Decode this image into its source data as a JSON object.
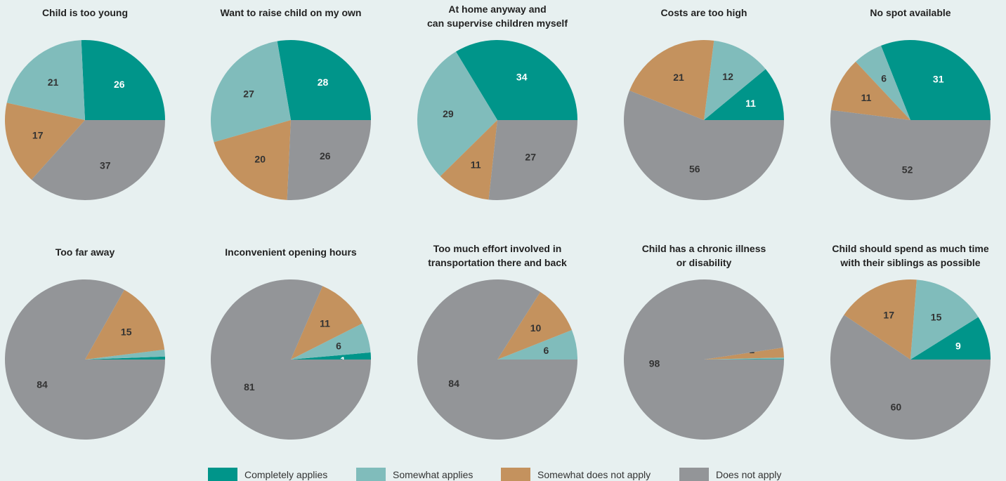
{
  "legend": [
    {
      "key": "completely",
      "label": "Completely applies",
      "color": "#00958a"
    },
    {
      "key": "somewhat",
      "label": "Somewhat applies",
      "color": "#80bcbb"
    },
    {
      "key": "somewhat_not",
      "label": "Somewhat does not apply",
      "color": "#c4925e"
    },
    {
      "key": "not",
      "label": "Does not apply",
      "color": "#939598"
    }
  ],
  "chart_data": [
    {
      "type": "pie",
      "title": [
        "Child is too young"
      ],
      "slices": [
        {
          "series": "Completely applies",
          "value": 26,
          "label": "26"
        },
        {
          "series": "Somewhat applies",
          "value": 21,
          "label": "21"
        },
        {
          "series": "Somewhat does not apply",
          "value": 17,
          "label": "17"
        },
        {
          "series": "Does not apply",
          "value": 37,
          "label": "37"
        }
      ]
    },
    {
      "type": "pie",
      "title": [
        "Want to raise child on my own"
      ],
      "slices": [
        {
          "series": "Completely applies",
          "value": 28,
          "label": "28"
        },
        {
          "series": "Somewhat applies",
          "value": 27,
          "label": "27"
        },
        {
          "series": "Somewhat does not apply",
          "value": 20,
          "label": "20"
        },
        {
          "series": "Does not apply",
          "value": 26,
          "label": "26"
        }
      ]
    },
    {
      "type": "pie",
      "title": [
        "At home anyway and",
        "can supervise children myself"
      ],
      "slices": [
        {
          "series": "Completely applies",
          "value": 34,
          "label": "34"
        },
        {
          "series": "Somewhat applies",
          "value": 29,
          "label": "29"
        },
        {
          "series": "Somewhat does not apply",
          "value": 11,
          "label": "11"
        },
        {
          "series": "Does not apply",
          "value": 27,
          "label": "27"
        }
      ]
    },
    {
      "type": "pie",
      "title": [
        "Costs are too high"
      ],
      "slices": [
        {
          "series": "Completely applies",
          "value": 11,
          "label": "11"
        },
        {
          "series": "Somewhat applies",
          "value": 12,
          "label": "12"
        },
        {
          "series": "Somewhat does not apply",
          "value": 21,
          "label": "21"
        },
        {
          "series": "Does not apply",
          "value": 56,
          "label": "56"
        }
      ]
    },
    {
      "type": "pie",
      "title": [
        "No spot available"
      ],
      "slices": [
        {
          "series": "Completely applies",
          "value": 31,
          "label": "31"
        },
        {
          "series": "Somewhat applies",
          "value": 6,
          "label": "6"
        },
        {
          "series": "Somewhat does not apply",
          "value": 11,
          "label": "11"
        },
        {
          "series": "Does not apply",
          "value": 52,
          "label": "52"
        }
      ]
    },
    {
      "type": "pie",
      "title": [
        "Too far away"
      ],
      "slices": [
        {
          "series": "Completely applies",
          "value": 0.6,
          "label": ""
        },
        {
          "series": "Somewhat applies",
          "value": 1.4,
          "label": "2"
        },
        {
          "series": "Somewhat does not apply",
          "value": 15,
          "label": "15"
        },
        {
          "series": "Does not apply",
          "value": 84,
          "label": "84"
        }
      ]
    },
    {
      "type": "pie",
      "title": [
        "Inconvenient opening hours"
      ],
      "slices": [
        {
          "series": "Completely applies",
          "value": 1.4,
          "label": "1"
        },
        {
          "series": "Somewhat applies",
          "value": 6,
          "label": "6"
        },
        {
          "series": "Somewhat does not apply",
          "value": 11,
          "label": "11"
        },
        {
          "series": "Does not apply",
          "value": 81,
          "label": "81"
        }
      ]
    },
    {
      "type": "pie",
      "title": [
        "Too much effort involved in",
        "transportation there and back"
      ],
      "slices": [
        {
          "series": "Completely applies",
          "value": 0,
          "label": ""
        },
        {
          "series": "Somewhat applies",
          "value": 6,
          "label": "6"
        },
        {
          "series": "Somewhat does not apply",
          "value": 10,
          "label": "10"
        },
        {
          "series": "Does not apply",
          "value": 84,
          "label": "84"
        }
      ]
    },
    {
      "type": "pie",
      "title": [
        "Child has a chronic illness",
        "or disability"
      ],
      "slices": [
        {
          "series": "Completely applies",
          "value": 0.1,
          "label": ""
        },
        {
          "series": "Somewhat applies",
          "value": 0.3,
          "label": "0.3"
        },
        {
          "series": "Somewhat does not apply",
          "value": 2,
          "label": "2"
        },
        {
          "series": "Does not apply",
          "value": 98,
          "label": "98"
        }
      ]
    },
    {
      "type": "pie",
      "title": [
        "Child should spend as much time",
        "with their siblings as possible"
      ],
      "slices": [
        {
          "series": "Completely applies",
          "value": 9,
          "label": "9"
        },
        {
          "series": "Somewhat applies",
          "value": 15,
          "label": "15"
        },
        {
          "series": "Somewhat does not apply",
          "value": 17,
          "label": "17"
        },
        {
          "series": "Does not apply",
          "value": 60,
          "label": "60"
        }
      ]
    }
  ]
}
